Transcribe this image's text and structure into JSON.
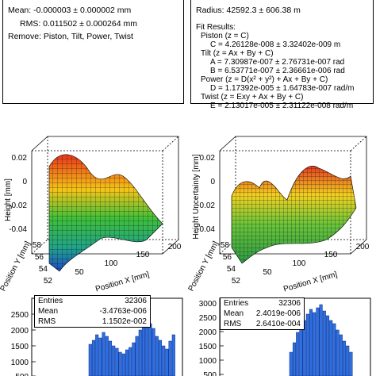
{
  "stats_panel_left": {
    "mean": "Mean: -0.000003 ± 0.000002 mm",
    "rms": "RMS: 0.011502 ± 0.000264 mm",
    "remove": "Remove: Piston, Tilt, Power, Twist"
  },
  "stats_panel_right": {
    "radius": "Radius: 42592.3 ± 606.38 m",
    "fit_header": "Fit Results:",
    "piston_title": "Piston (z = C)",
    "piston_c": "C = 4.26128e-008 ± 3.32402e-009 m",
    "tilt_title": "Tilt (z = Ax + By + C)",
    "tilt_a": "A = 7.30987e-007 ± 2.76731e-007 rad",
    "tilt_b": "B = 6.53771e-007 ± 2.36661e-006 rad",
    "power_title": "Power (z = D(x² + y²) + Ax + By + C)",
    "power_d": "D = 1.17392e-005 ± 1.64783e-007 rad/m",
    "twist_title": "Twist (z = Exy + Ax + By + C)",
    "twist_e": "E = 2.13017e-005 ± 2.31122e-008 rad/m"
  },
  "plot_left": {
    "zlabel": "Height [mm]",
    "xlabel": "Position X [mm]",
    "ylabel": "Position Y [mm]",
    "zticks": [
      "0.02",
      "0",
      "-0.02",
      "-0.04"
    ],
    "xticks": [
      "50",
      "100",
      "150",
      "200"
    ],
    "yticks": [
      "52",
      "54",
      "56",
      "58"
    ]
  },
  "plot_right": {
    "zlabel": "Height Uncertainty [mm]",
    "xlabel": "Position X [mm]",
    "ylabel": "Position Y [mm]",
    "zticks": [
      "0.02",
      "0",
      "-0.02",
      "-0.04"
    ],
    "xticks": [
      "50",
      "100",
      "150",
      "200"
    ],
    "yticks": [
      "52",
      "54",
      "56",
      "58"
    ]
  },
  "hist_left": {
    "entries_label": "Entries",
    "entries_value": "32306",
    "mean_label": "Mean",
    "mean_value": "-3.4763e-006",
    "rms_label": "RMS",
    "rms_value": "1.1502e-002",
    "yticks": [
      "2500",
      "2000",
      "1500",
      "1000",
      "500"
    ]
  },
  "hist_right": {
    "entries_label": "Entries",
    "entries_value": "32306",
    "mean_label": "Mean",
    "mean_value": "2.4019e-006",
    "rms_label": "RMS",
    "rms_value": "2.6410e-004",
    "yticks": [
      "3000",
      "2500",
      "2000",
      "1500",
      "1000",
      "500"
    ]
  },
  "colors": {
    "hist_fill": "#2f6fe0",
    "hist_stroke": "#0b2f8a",
    "frame": "#000000"
  }
}
